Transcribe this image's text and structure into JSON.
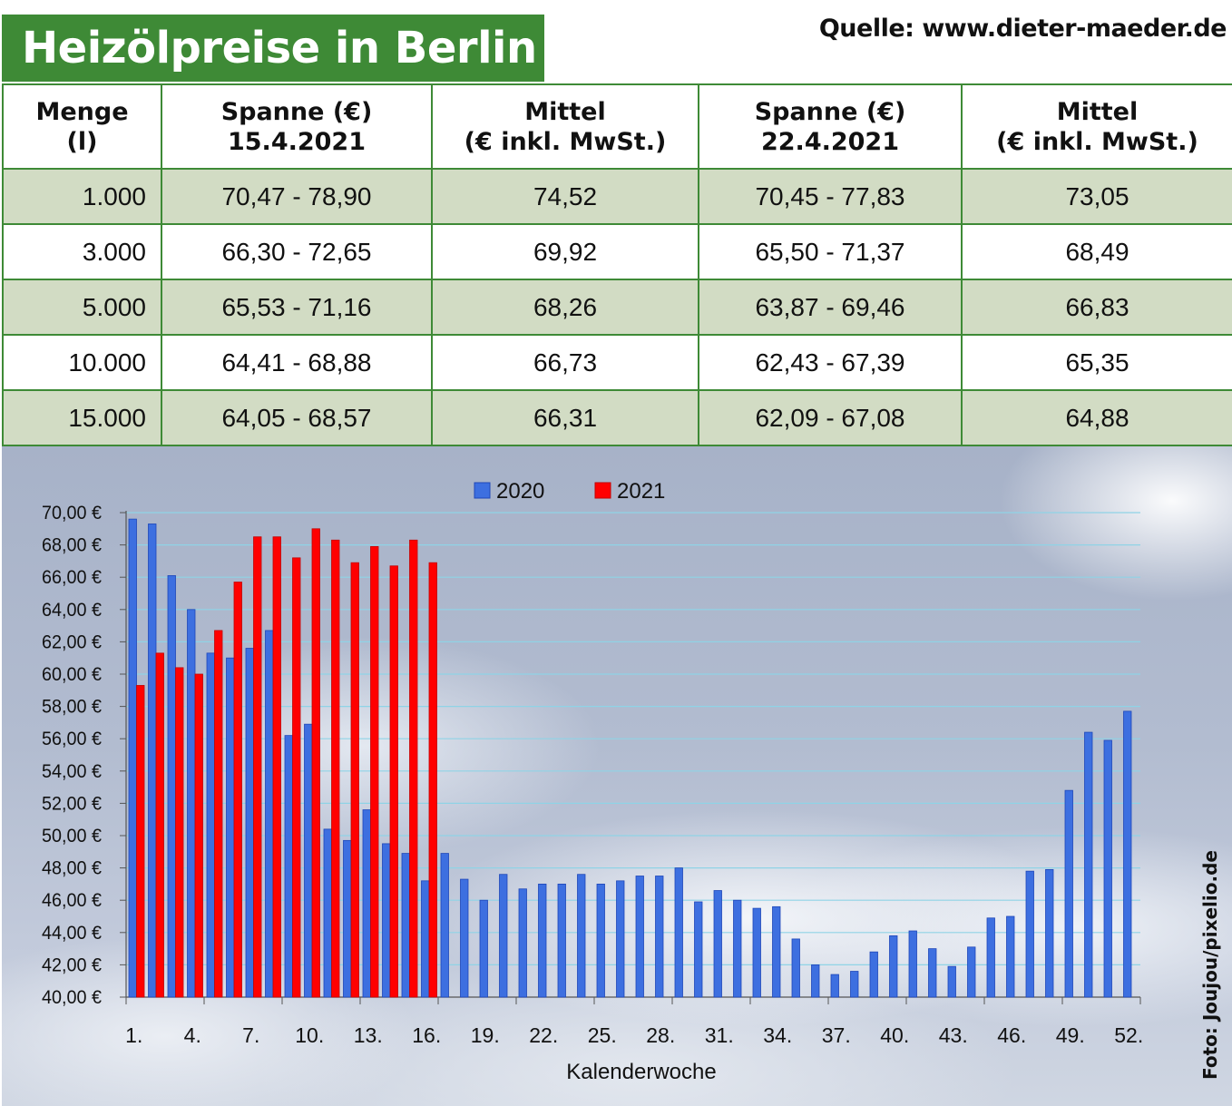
{
  "header": {
    "title": "Heizölpreise in Berlin",
    "source": "Quelle: www.dieter-maeder.de"
  },
  "table": {
    "headers": [
      [
        "Menge",
        "(l)"
      ],
      [
        "Spanne (€)",
        "15.4.2021"
      ],
      [
        "Mittel",
        "(€ inkl. MwSt.)"
      ],
      [
        "Spanne (€)",
        "22.4.2021"
      ],
      [
        "Mittel",
        "(€ inkl. MwSt.)"
      ]
    ],
    "rows": [
      [
        "1.000",
        "70,47 - 78,90",
        "74,52",
        "70,45 - 77,83",
        "73,05"
      ],
      [
        "3.000",
        "66,30 - 72,65",
        "69,92",
        "65,50 - 71,37",
        "68,49"
      ],
      [
        "5.000",
        "65,53 - 71,16",
        "68,26",
        "63,87 - 69,46",
        "66,83"
      ],
      [
        "10.000",
        "64,41 - 68,88",
        "66,73",
        "62,43 - 67,39",
        "65,35"
      ],
      [
        "15.000",
        "64,05 - 68,57",
        "66,31",
        "62,09 - 67,08",
        "64,88"
      ]
    ]
  },
  "chart_data": {
    "type": "bar",
    "xlabel": "Kalenderwoche",
    "ylabel": "",
    "ylim": [
      40,
      70
    ],
    "yticks": [
      40,
      42,
      44,
      46,
      48,
      50,
      52,
      54,
      56,
      58,
      60,
      62,
      64,
      66,
      68,
      70
    ],
    "ytick_labels": [
      "40,00 €",
      "42,00 €",
      "44,00 €",
      "46,00 €",
      "48,00 €",
      "50,00 €",
      "52,00 €",
      "54,00 €",
      "56,00 €",
      "58,00 €",
      "60,00 €",
      "62,00 €",
      "64,00 €",
      "66,00 €",
      "68,00 €",
      "70,00 €"
    ],
    "x_tick_labels": [
      "1.",
      "4.",
      "7.",
      "10.",
      "13.",
      "16.",
      "19.",
      "22.",
      "25.",
      "28.",
      "31.",
      "34.",
      "37.",
      "40.",
      "43.",
      "46.",
      "49.",
      "52."
    ],
    "x_tick_weeks": [
      1,
      4,
      7,
      10,
      13,
      16,
      19,
      22,
      25,
      28,
      31,
      34,
      37,
      40,
      43,
      46,
      49,
      52
    ],
    "grid": true,
    "legend_position": "top-center",
    "series": [
      {
        "name": "2020",
        "color": "#3d6fe0",
        "values": [
          69.6,
          69.3,
          66.1,
          64.0,
          61.3,
          61.0,
          61.6,
          62.7,
          56.2,
          56.9,
          50.4,
          49.7,
          51.6,
          49.5,
          48.9,
          47.2,
          48.9,
          47.3,
          46.0,
          47.6,
          46.7,
          47.0,
          47.0,
          47.6,
          47.0,
          47.2,
          47.5,
          47.5,
          48.0,
          45.9,
          46.6,
          46.0,
          45.5,
          45.6,
          43.6,
          42.0,
          41.4,
          41.6,
          42.8,
          43.8,
          44.1,
          43.0,
          41.9,
          43.1,
          44.9,
          45.0,
          47.8,
          47.9,
          52.8,
          56.4,
          55.9,
          57.7
        ]
      },
      {
        "name": "2021",
        "color": "#ff0000",
        "values": [
          59.3,
          61.3,
          60.4,
          60.0,
          62.7,
          65.7,
          68.5,
          68.5,
          67.2,
          69.0,
          68.3,
          66.9,
          67.9,
          66.7,
          68.3,
          66.9
        ]
      }
    ]
  },
  "credit": "Foto: Joujou/pixelio.de"
}
